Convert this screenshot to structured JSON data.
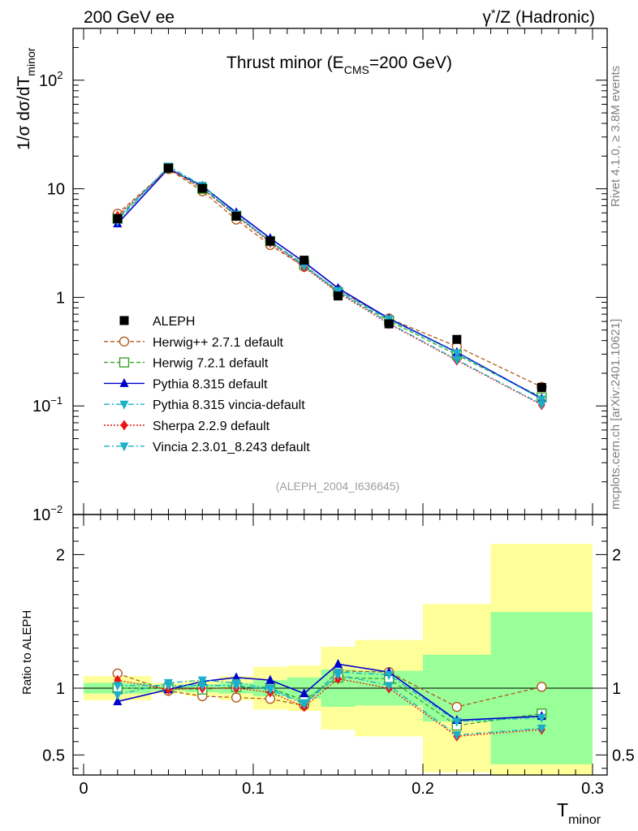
{
  "header": {
    "left": "200 GeV ee",
    "right_pre": "γ",
    "right_sup": "*",
    "right_post": "/Z (Hadronic)"
  },
  "side_text": {
    "top": "Rivet 4.1.0, ≥ 3.8M events",
    "bottom": "mcplots.cern.ch [arXiv:2401.10621]"
  },
  "chart_data": {
    "type": "line",
    "title_pre": "Thrust minor (E",
    "title_sub": "CMS",
    "title_post": "=200 GeV)",
    "analysis_tag": "(ALEPH_2004_I636645)",
    "xlabel_main": "T",
    "xlabel_sub": "minor",
    "ylabel_pre": "1/σ  dσ/dT",
    "ylabel_sub": "minor",
    "ratio_ylabel": "Ratio to ALEPH",
    "xlim": [
      0,
      0.3
    ],
    "ylim_main": [
      0.01,
      300
    ],
    "ylim_ratio": [
      0.35,
      2.3
    ],
    "x_ticks": [
      {
        "value": 0,
        "label": "0"
      },
      {
        "value": 0.1,
        "label": "0.1"
      },
      {
        "value": 0.2,
        "label": "0.2"
      },
      {
        "value": 0.3,
        "label": "0.3"
      }
    ],
    "main_y_ticks": [
      {
        "value": 100,
        "base": "10",
        "exp": "2"
      },
      {
        "value": 10,
        "base": "10",
        "exp": ""
      },
      {
        "value": 1,
        "base": "1",
        "exp": ""
      },
      {
        "value": 0.1,
        "base": "10",
        "exp": "−1"
      },
      {
        "value": 0.01,
        "base": "10",
        "exp": "−2"
      }
    ],
    "ratio_y_ticks": [
      {
        "value": 2,
        "label": "2"
      },
      {
        "value": 1,
        "label": "1"
      },
      {
        "value": 0.5,
        "label": "0.5"
      }
    ],
    "bins": [
      {
        "lo": 0.0,
        "hi": 0.04,
        "x": 0.02,
        "stat": 0.04,
        "tot": 0.09
      },
      {
        "lo": 0.04,
        "hi": 0.06,
        "x": 0.05,
        "stat": 0.02,
        "tot": 0.04
      },
      {
        "lo": 0.06,
        "hi": 0.08,
        "x": 0.07,
        "stat": 0.03,
        "tot": 0.06
      },
      {
        "lo": 0.08,
        "hi": 0.1,
        "x": 0.09,
        "stat": 0.04,
        "tot": 0.09
      },
      {
        "lo": 0.1,
        "hi": 0.12,
        "x": 0.11,
        "stat": 0.06,
        "tot": 0.16
      },
      {
        "lo": 0.12,
        "hi": 0.14,
        "x": 0.13,
        "stat": 0.08,
        "tot": 0.17
      },
      {
        "lo": 0.14,
        "hi": 0.16,
        "x": 0.15,
        "stat": 0.14,
        "tot": 0.31
      },
      {
        "lo": 0.16,
        "hi": 0.2,
        "x": 0.18,
        "stat": 0.13,
        "tot": 0.36
      },
      {
        "lo": 0.2,
        "hi": 0.24,
        "x": 0.22,
        "stat": 0.25,
        "tot": 0.63
      },
      {
        "lo": 0.24,
        "hi": 0.3,
        "x": 0.27,
        "stat": 0.57,
        "tot": 1.08
      }
    ],
    "data": {
      "name": "ALEPH",
      "values": [
        5.3,
        15.5,
        10.1,
        5.6,
        3.3,
        2.2,
        1.03,
        0.57,
        0.41,
        0.148
      ]
    },
    "series": [
      {
        "name": "Herwig++ 2.7.1 default",
        "color": "#b05a1e",
        "marker": "circle-open",
        "line": "dashed",
        "ratio": [
          1.11,
          0.98,
          0.94,
          0.93,
          0.92,
          0.87,
          1.13,
          1.12,
          0.86,
          1.01
        ]
      },
      {
        "name": "Herwig 7.2.1 default",
        "color": "#3aa12b",
        "marker": "square-open",
        "line": "dashed",
        "ratio": [
          1.0,
          1.0,
          0.99,
          1.01,
          1.0,
          0.91,
          1.08,
          1.07,
          0.72,
          0.81
        ]
      },
      {
        "name": "Pythia 8.315 default",
        "color": "#0000cc",
        "marker": "triangle-up",
        "line": "solid",
        "ratio": [
          0.9,
          0.99,
          1.05,
          1.08,
          1.06,
          0.96,
          1.18,
          1.12,
          0.76,
          0.79
        ]
      },
      {
        "name": "Pythia 8.315 vincia-default",
        "color": "#1ab0c8",
        "marker": "triangle-down",
        "line": "dashdot",
        "ratio": [
          0.95,
          1.04,
          1.06,
          1.04,
          1.0,
          0.89,
          1.12,
          1.1,
          0.75,
          0.78
        ]
      },
      {
        "name": "Sherpa 2.2.9 default",
        "color": "#ee1111",
        "marker": "diamond",
        "line": "dotted",
        "ratio": [
          1.06,
          0.99,
          1.0,
          1.0,
          0.97,
          0.86,
          1.07,
          1.0,
          0.64,
          0.69
        ]
      },
      {
        "name": "Vincia 2.3.01_8.243 default",
        "color": "#1ab0c8",
        "marker": "triangle-down",
        "line": "dashdot",
        "ratio": [
          1.02,
          1.02,
          1.02,
          1.02,
          0.99,
          0.88,
          1.1,
          1.02,
          0.65,
          0.7
        ]
      }
    ]
  }
}
